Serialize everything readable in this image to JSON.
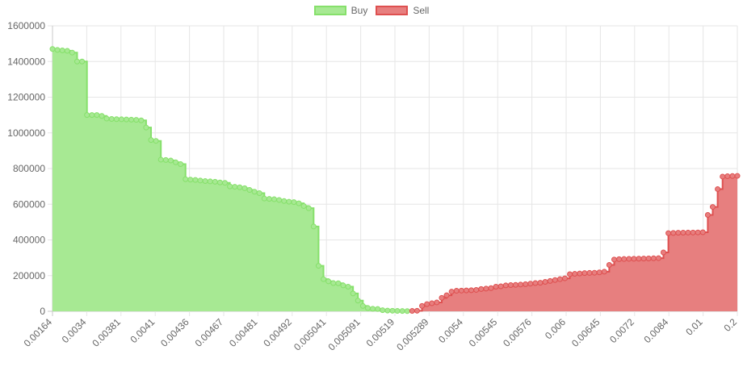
{
  "chart_data": {
    "type": "area",
    "legend_position": "top",
    "grid": true,
    "ylim": [
      0,
      1600000
    ],
    "y_ticks": [
      0,
      200000,
      400000,
      600000,
      800000,
      1000000,
      1200000,
      1400000,
      1600000
    ],
    "x_tick_labels": [
      "0.00164",
      "0.0034",
      "0.00381",
      "0.0041",
      "0.00436",
      "0.00467",
      "0.00481",
      "0.00492",
      "0.005041",
      "0.005091",
      "0.00519",
      "0.005289",
      "0.0054",
      "0.00545",
      "0.00576",
      "0.006",
      "0.00645",
      "0.0072",
      "0.0084",
      "0.01",
      "0.2"
    ],
    "colors": {
      "buy_fill": "#a7e993",
      "buy_line": "#86e06b",
      "sell_fill": "#e77f7f",
      "sell_line": "#de5050"
    },
    "series": [
      {
        "name": "Buy",
        "values": [
          1470000,
          1465000,
          1462000,
          1460000,
          1450000,
          1400000,
          1400000,
          1100000,
          1100000,
          1100000,
          1095000,
          1080000,
          1078000,
          1077000,
          1076000,
          1075000,
          1074000,
          1073000,
          1070000,
          1030000,
          960000,
          955000,
          850000,
          848000,
          845000,
          835000,
          825000,
          740000,
          738000,
          736000,
          733000,
          730000,
          728000,
          726000,
          722000,
          720000,
          700000,
          698000,
          695000,
          690000,
          680000,
          670000,
          662000,
          632000,
          630000,
          628000,
          624000,
          618000,
          614000,
          612000,
          605000,
          590000,
          578000,
          475000,
          255000,
          180000,
          168000,
          158000,
          157000,
          145000,
          138000,
          100000,
          60000,
          30000,
          18000,
          14000,
          13000,
          6000,
          4000,
          3000,
          2000,
          1500,
          1000
        ]
      },
      {
        "name": "Sell",
        "values": [
          2000,
          3000,
          30000,
          40000,
          45000,
          50000,
          75000,
          90000,
          110000,
          115000,
          116000,
          117000,
          118000,
          120000,
          125000,
          127000,
          130000,
          138000,
          140000,
          145000,
          147000,
          148000,
          150000,
          152000,
          155000,
          158000,
          160000,
          165000,
          170000,
          175000,
          180000,
          185000,
          208000,
          210000,
          212000,
          214000,
          215000,
          216000,
          218000,
          222000,
          260000,
          290000,
          292000,
          293000,
          294000,
          294500,
          295000,
          295500,
          296000,
          297000,
          298000,
          330000,
          438000,
          439000,
          440000,
          440500,
          441000,
          441500,
          442000,
          443000,
          540000,
          585000,
          685000,
          755000,
          757000,
          758000,
          759000
        ]
      }
    ]
  }
}
